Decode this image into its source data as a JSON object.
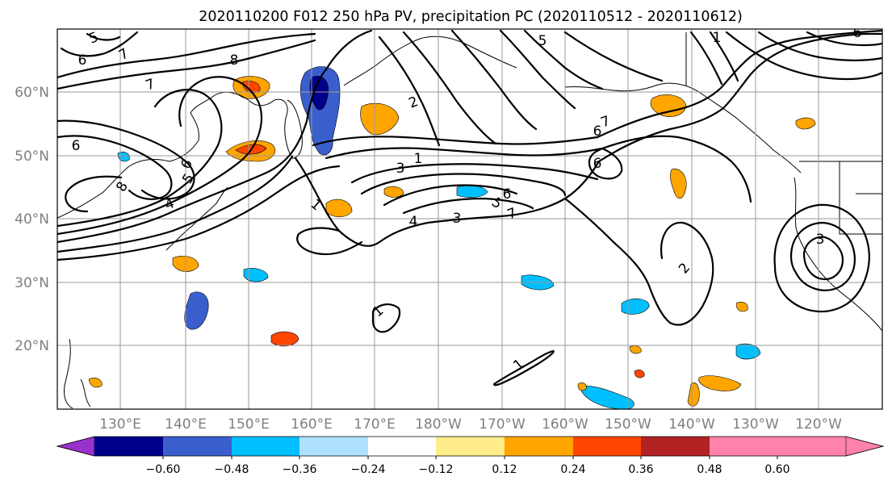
{
  "title": "2020110200 F012 250 hPa PV, precipitation PC (2020110512 - 2020110612)",
  "lat_labels": [
    "20°N",
    "30°N",
    "40°N",
    "50°N",
    "60°N"
  ],
  "lon_labels": [
    "130°E",
    "140°E",
    "150°E",
    "160°E",
    "170°E",
    "180°W",
    "170°W",
    "160°W",
    "150°W",
    "140°W",
    "130°W",
    "120°W"
  ],
  "colorbar": {
    "colors": [
      "#9932cc",
      "#00008b",
      "#3a5fcd",
      "#00bfff",
      "#b0e2ff",
      "#ffffff",
      "#ffec8b",
      "#ffa500",
      "#ff4500",
      "#b22222",
      "#ff82ab"
    ],
    "tick_labels": [
      "−0.60",
      "−0.48",
      "−0.36",
      "−0.24",
      "−0.12",
      "0.12",
      "0.24",
      "0.36",
      "0.48",
      "0.60"
    ]
  },
  "contour_labels": [
    "5",
    "6",
    "7",
    "8",
    "7",
    "6",
    "8",
    "4",
    "6",
    "5",
    "1",
    "2",
    "1",
    "3",
    "4",
    "3",
    "5",
    "6",
    "7",
    "6",
    "7",
    "6",
    "1",
    "1",
    "3",
    "2",
    "5",
    "1",
    "6"
  ]
}
